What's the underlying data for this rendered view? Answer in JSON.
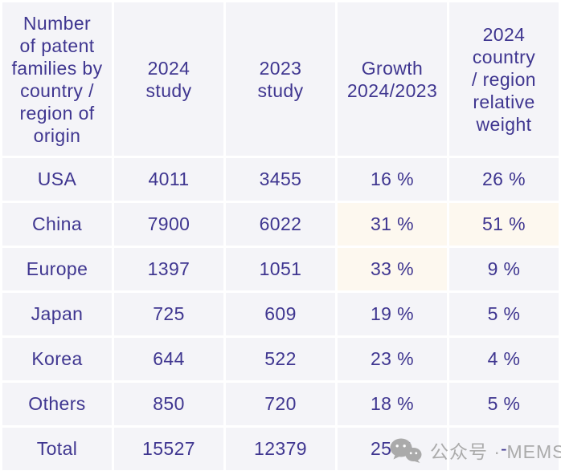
{
  "colors": {
    "text": "#3f3690",
    "cell_bg": "#f4f4f8",
    "highlight_bg": "#fdf8ef",
    "watermark": "#ababab",
    "page_bg": "#ffffff"
  },
  "table": {
    "header": [
      "Number\nof patent\nfamilies by\ncountry /\nregion of\norigin",
      "2024\nstudy",
      "2023\nstudy",
      "Growth\n2024/2023",
      "2024\ncountry\n/ region\nrelative\nweight"
    ],
    "rows": [
      {
        "region": "USA",
        "study_2024": "4011",
        "study_2023": "3455",
        "growth": "16 %",
        "weight": "26 %",
        "growth_highlight": false,
        "weight_highlight": false
      },
      {
        "region": "China",
        "study_2024": "7900",
        "study_2023": "6022",
        "growth": "31 %",
        "weight": "51 %",
        "growth_highlight": true,
        "weight_highlight": true
      },
      {
        "region": "Europe",
        "study_2024": "1397",
        "study_2023": "1051",
        "growth": "33 %",
        "weight": "9 %",
        "growth_highlight": true,
        "weight_highlight": false
      },
      {
        "region": "Japan",
        "study_2024": "725",
        "study_2023": "609",
        "growth": "19 %",
        "weight": "5 %",
        "growth_highlight": false,
        "weight_highlight": false
      },
      {
        "region": "Korea",
        "study_2024": "644",
        "study_2023": "522",
        "growth": "23 %",
        "weight": "4 %",
        "growth_highlight": false,
        "weight_highlight": false
      },
      {
        "region": "Others",
        "study_2024": "850",
        "study_2023": "720",
        "growth": "18 %",
        "weight": "5 %",
        "growth_highlight": false,
        "weight_highlight": false
      },
      {
        "region": "Total",
        "study_2024": "15527",
        "study_2023": "12379",
        "growth": "25 %",
        "weight": "-",
        "growth_highlight": false,
        "weight_highlight": false
      }
    ]
  },
  "watermark": {
    "label": "公众号 · MEMS",
    "icon": "wechat-icon"
  }
}
